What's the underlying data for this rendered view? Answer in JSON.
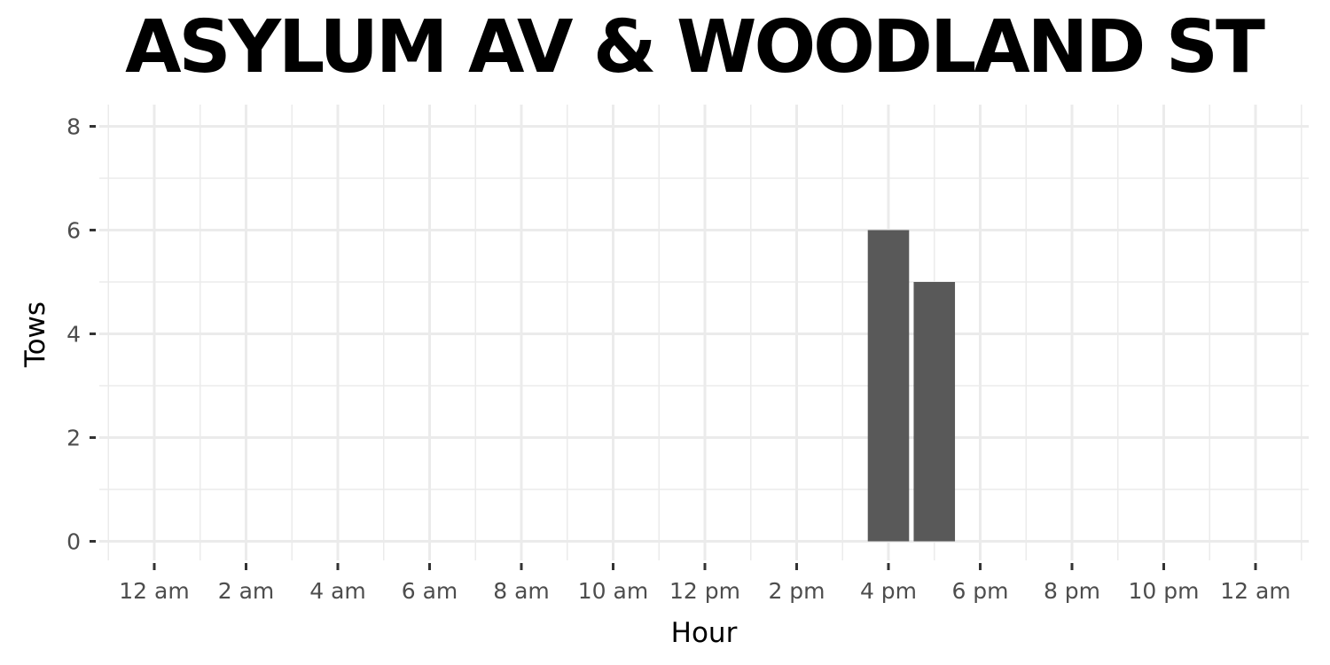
{
  "chart_data": {
    "type": "bar",
    "title": "ASYLUM AV & WOODLAND ST",
    "xlabel": "Hour",
    "ylabel": "Tows",
    "ylim": [
      0,
      8
    ],
    "y_ticks": [
      0,
      2,
      4,
      6,
      8
    ],
    "xlim": [
      -0.5,
      25.5
    ],
    "x_tick_values": [
      0,
      2,
      4,
      6,
      8,
      10,
      12,
      14,
      16,
      18,
      20,
      22,
      24
    ],
    "x_tick_labels": [
      "12 am",
      "2 am",
      "4 am",
      "6 am",
      "8 am",
      "10 am",
      "12 pm",
      "2 pm",
      "4 pm",
      "6 pm",
      "8 pm",
      "10 pm",
      "12 am"
    ],
    "x": [
      16,
      17
    ],
    "values": [
      6,
      5
    ],
    "bar_color": "#595959",
    "grid": true,
    "gridline_color": "#ebebeb",
    "legend": "none"
  }
}
